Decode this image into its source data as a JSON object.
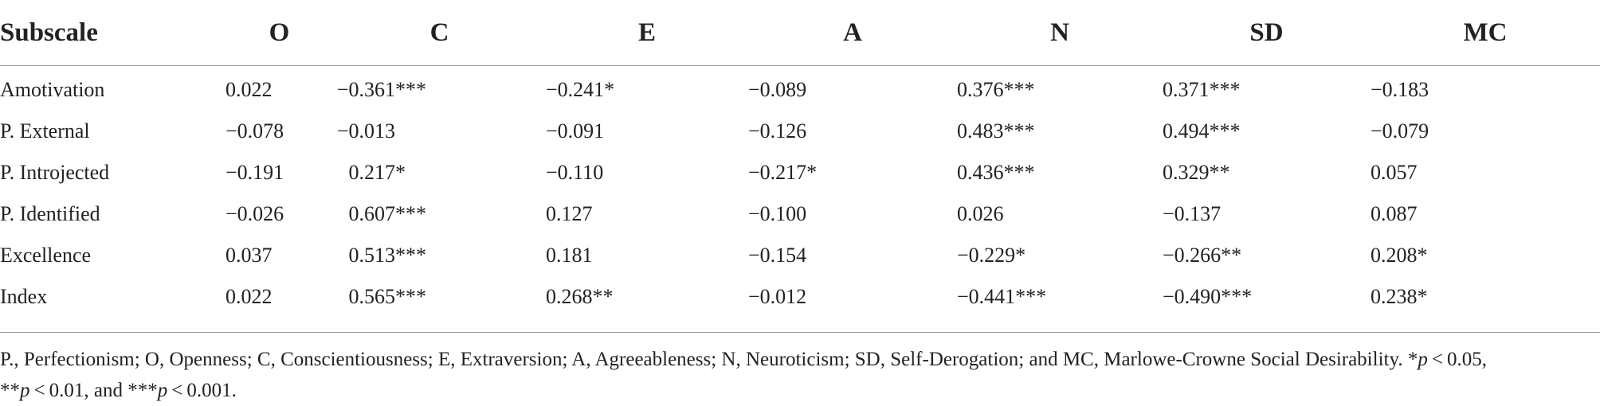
{
  "table": {
    "headers": [
      "Subscale",
      "O",
      "C",
      "E",
      "A",
      "N",
      "SD",
      "MC"
    ],
    "rows": [
      {
        "subscale": "Amotivation",
        "O": "0.022",
        "C": "−0.361***",
        "E": "−0.241*",
        "A": "−0.089",
        "N": "0.376***",
        "SD": "0.371***",
        "MC": "−0.183"
      },
      {
        "subscale": "P. External",
        "O": "−0.078",
        "C": "−0.013",
        "E": "−0.091",
        "A": "−0.126",
        "N": "0.483***",
        "SD": "0.494***",
        "MC": "−0.079"
      },
      {
        "subscale": "P. Introjected",
        "O": "−0.191",
        "C": "0.217*",
        "E": "−0.110",
        "A": "−0.217*",
        "N": "0.436***",
        "SD": "0.329**",
        "MC": "0.057"
      },
      {
        "subscale": "P. Identified",
        "O": "−0.026",
        "C": "0.607***",
        "E": "0.127",
        "A": "−0.100",
        "N": "0.026",
        "SD": "−0.137",
        "MC": "0.087"
      },
      {
        "subscale": "Excellence",
        "O": "0.037",
        "C": "0.513***",
        "E": "0.181",
        "A": "−0.154",
        "N": "−0.229*",
        "SD": "−0.266**",
        "MC": "0.208*"
      },
      {
        "subscale": "Index",
        "O": "0.022",
        "C": "0.565***",
        "E": "0.268**",
        "A": "−0.012",
        "N": "−0.441***",
        "SD": "−0.490***",
        "MC": "0.238*"
      }
    ]
  },
  "footnote": {
    "part1": "P., Perfectionism; O, Openness; C, Conscientiousness; E, Extraversion; A, Agreeableness; N, Neuroticism; SD, Self-Derogation; and MC, Marlowe-Crowne Social Desirability. *",
    "p1": "p",
    "part2": " < 0.05,",
    "part3": "**",
    "p2": "p",
    "part4": " < 0.01, and ***",
    "p3": "p",
    "part5": " < 0.001."
  }
}
